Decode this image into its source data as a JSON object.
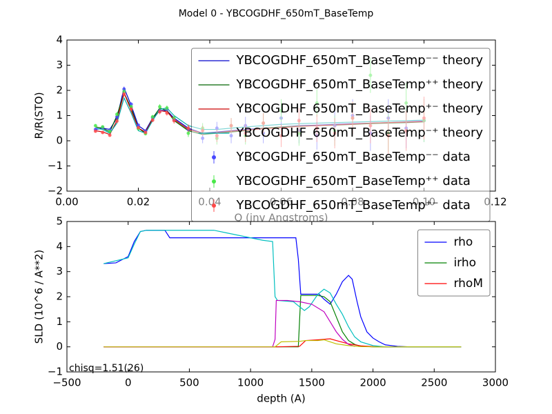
{
  "chart_data": [
    {
      "type": "line",
      "title": "Model 0 - YBCOGDHF_650mT_BaseTemp",
      "xlabel": "Q (inv Angstroms)",
      "ylabel": "R/R(STO)",
      "xlim": [
        0,
        0.12
      ],
      "ylim": [
        -2,
        4
      ],
      "xticks": [
        {
          "value": 0,
          "label": "0.00"
        },
        {
          "value": 0.02,
          "label": "0.02"
        },
        {
          "value": 0.04,
          "label": "0.04"
        },
        {
          "value": 0.06,
          "label": "0.06"
        },
        {
          "value": 0.08,
          "label": "0.08"
        },
        {
          "value": 0.1,
          "label": "0.10"
        },
        {
          "value": 0.12,
          "label": "0.12"
        }
      ],
      "yticks": [
        {
          "value": -2,
          "label": "−2"
        },
        {
          "value": -1,
          "label": "−1"
        },
        0,
        1,
        2,
        3,
        4
      ],
      "grid": false,
      "legend": "upper right",
      "x": [
        0.008,
        0.01,
        0.012,
        0.014,
        0.016,
        0.018,
        0.02,
        0.022,
        0.024,
        0.026,
        0.028,
        0.03,
        0.034,
        0.038,
        0.042,
        0.046,
        0.05,
        0.055,
        0.06,
        0.065,
        0.07,
        0.075,
        0.08,
        0.085,
        0.09,
        0.095,
        0.1
      ],
      "series": [
        {
          "name": "YBCOGDHF_650mT_BaseTemp⁻⁻ theory",
          "color": "#0000cc",
          "style": "line",
          "values": [
            0.45,
            0.5,
            0.45,
            0.9,
            2.1,
            1.4,
            0.6,
            0.4,
            0.9,
            1.2,
            1.2,
            0.9,
            0.5,
            0.3,
            0.35,
            0.4,
            0.45,
            0.5,
            0.55,
            0.6,
            0.62,
            0.65,
            0.68,
            0.7,
            0.72,
            0.75,
            0.78
          ]
        },
        {
          "name": "YBCOGDHF_650mT_BaseTemp⁺⁺ theory",
          "color": "#006400",
          "style": "line",
          "values": [
            0.55,
            0.5,
            0.35,
            1.0,
            1.9,
            1.3,
            0.5,
            0.3,
            0.9,
            1.3,
            1.2,
            0.8,
            0.4,
            0.25,
            0.3,
            0.35,
            0.4,
            0.5,
            0.55,
            0.58,
            0.6,
            0.62,
            0.65,
            0.68,
            0.7,
            0.72,
            0.75
          ]
        },
        {
          "name": "YBCOGDHF_650mT_BaseTemp⁺⁻ theory",
          "color": "#cc0000",
          "style": "line",
          "values": [
            0.4,
            0.35,
            0.25,
            0.8,
            1.9,
            1.2,
            0.5,
            0.35,
            0.85,
            1.2,
            1.15,
            0.85,
            0.45,
            0.3,
            0.32,
            0.38,
            0.42,
            0.48,
            0.52,
            0.57,
            0.6,
            0.63,
            0.66,
            0.7,
            0.72,
            0.74,
            0.76
          ]
        },
        {
          "name": "YBCOGDHF_650mT_BaseTemp⁻⁺ theory",
          "color": "#00aaaa",
          "style": "line",
          "values": [
            0.5,
            0.45,
            0.3,
            0.7,
            1.7,
            1.1,
            0.4,
            0.3,
            0.8,
            1.25,
            1.3,
            1.0,
            0.6,
            0.45,
            0.45,
            0.5,
            0.55,
            0.6,
            0.65,
            0.68,
            0.7,
            0.72,
            0.74,
            0.76,
            0.78,
            0.8,
            0.82
          ]
        },
        {
          "name": "YBCOGDHF_650mT_BaseTemp⁻⁻ data",
          "color": "#4848ff",
          "style": "errorbar",
          "values": [
            0.45,
            0.52,
            0.43,
            0.95,
            2.05,
            1.45,
            0.62,
            0.38,
            0.92,
            1.18,
            1.25,
            0.85,
            0.45,
            0.1,
            0.5,
            0.2,
            0.6,
            0.3,
            0.9,
            0.4,
            0.2,
            0.6,
            1.0,
            0.3,
            0.9,
            0.5,
            0.8
          ],
          "errors": [
            0.05,
            0.05,
            0.05,
            0.08,
            0.1,
            0.08,
            0.06,
            0.06,
            0.08,
            0.1,
            0.1,
            0.12,
            0.15,
            0.2,
            0.25,
            0.3,
            0.35,
            0.4,
            0.45,
            0.5,
            0.55,
            0.6,
            0.65,
            0.7,
            0.75,
            0.8,
            0.85
          ]
        },
        {
          "name": "YBCOGDHF_650mT_BaseTemp⁺⁺ data",
          "color": "#48e848",
          "style": "errorbar",
          "values": [
            0.6,
            0.55,
            0.38,
            1.05,
            1.95,
            1.35,
            0.48,
            0.28,
            0.95,
            1.35,
            1.3,
            0.9,
            0.3,
            0.5,
            0.1,
            0.6,
            0.2,
            0.7,
            1.2,
            0.3,
            1.5,
            0.4,
            0.9,
            2.6,
            0.3,
            1.5,
            0.8
          ],
          "errors": [
            0.05,
            0.05,
            0.05,
            0.08,
            0.1,
            0.08,
            0.06,
            0.06,
            0.08,
            0.1,
            0.1,
            0.12,
            0.15,
            0.2,
            0.25,
            0.3,
            0.35,
            0.4,
            0.45,
            0.5,
            0.55,
            0.6,
            0.65,
            0.7,
            0.75,
            0.8,
            0.85
          ]
        },
        {
          "name": "YBCOGDHF_650mT_BaseTemp⁺⁻ data",
          "color": "#ff4848",
          "style": "errorbar",
          "values": [
            0.38,
            0.33,
            0.22,
            0.78,
            1.85,
            1.25,
            0.52,
            0.33,
            0.82,
            1.15,
            1.1,
            0.8,
            0.5,
            0.4,
            0.2,
            0.6,
            0.3,
            0.7,
            0.2,
            0.8,
            0.5,
            0.3,
            0.9,
            0.6,
            0.2,
            0.4,
            0.9
          ],
          "errors": [
            0.05,
            0.05,
            0.05,
            0.08,
            0.1,
            0.08,
            0.06,
            0.06,
            0.08,
            0.1,
            0.1,
            0.12,
            0.15,
            0.2,
            0.25,
            0.3,
            0.35,
            0.4,
            0.45,
            0.5,
            0.55,
            0.6,
            0.65,
            0.7,
            0.75,
            0.8,
            0.85
          ]
        }
      ]
    },
    {
      "type": "line",
      "xlabel": "depth (A)",
      "ylabel": "SLD (10^6 / A**2)",
      "xlim": [
        -500,
        3000
      ],
      "ylim": [
        -1,
        5
      ],
      "xticks": [
        {
          "value": -500,
          "label": "−500"
        },
        0,
        500,
        1000,
        1500,
        2000,
        2500,
        3000
      ],
      "yticks": [
        {
          "value": -1,
          "label": "−1"
        },
        0,
        1,
        2,
        3,
        4,
        5
      ],
      "grid": false,
      "legend": "upper right",
      "annotation": "chisq=1.51(26)",
      "series": [
        {
          "name": "rho",
          "color": "#0000ff",
          "x": [
            -200,
            -100,
            0,
            50,
            100,
            150,
            300,
            340,
            400,
            1000,
            1370,
            1390,
            1410,
            1500,
            1560,
            1600,
            1650,
            1700,
            1750,
            1800,
            1830,
            1870,
            1900,
            1950,
            2000,
            2050,
            2100,
            2200,
            2300,
            2720
          ],
          "values": [
            3.32,
            3.35,
            3.6,
            4.2,
            4.6,
            4.65,
            4.65,
            4.35,
            4.35,
            4.35,
            4.35,
            3.5,
            2.1,
            2.1,
            2.1,
            1.9,
            1.7,
            2.1,
            2.6,
            2.85,
            2.7,
            1.8,
            1.2,
            0.6,
            0.35,
            0.2,
            0.08,
            0.02,
            0,
            0
          ]
        },
        {
          "name": "irho",
          "color": "#008000",
          "x": [
            -200,
            1390,
            1410,
            1550,
            1600,
            1650,
            1700,
            1750,
            1800,
            1850,
            1900,
            2000,
            2720
          ],
          "values": [
            0,
            0,
            2.05,
            2.05,
            2.0,
            1.8,
            1.2,
            0.6,
            0.25,
            0.1,
            0.02,
            0,
            0
          ]
        },
        {
          "name": "rhoM",
          "color": "#ff0000",
          "x": [
            -200,
            1200,
            1400,
            1450,
            1550,
            1600,
            1650,
            1700,
            1800,
            1900,
            2000,
            2100,
            2720
          ],
          "values": [
            0,
            0,
            0.02,
            0.25,
            0.28,
            0.3,
            0.32,
            0.25,
            0.12,
            0.04,
            0.01,
            0,
            0
          ]
        },
        {
          "color": "#00bfbf",
          "x": [
            -200,
            0,
            50,
            100,
            150,
            700,
            800,
            900,
            1000,
            1100,
            1180,
            1200,
            1220,
            1350,
            1400,
            1440,
            1480,
            1550,
            1600,
            1650,
            1700,
            1750,
            1800,
            1850,
            1900,
            2000,
            2100,
            2720
          ],
          "values": [
            3.32,
            3.55,
            4.1,
            4.6,
            4.65,
            4.65,
            4.55,
            4.45,
            4.35,
            4.25,
            4.2,
            2.0,
            1.85,
            1.8,
            1.6,
            1.45,
            1.6,
            2.1,
            2.3,
            2.15,
            1.7,
            1.3,
            0.8,
            0.4,
            0.2,
            0.05,
            0,
            0
          ]
        },
        {
          "color": "#bf00bf",
          "x": [
            -200,
            1180,
            1200,
            1210,
            1300,
            1400,
            1500,
            1600,
            1650,
            1700,
            1750,
            1800,
            1850
          ],
          "values": [
            0,
            0,
            0.3,
            1.85,
            1.85,
            1.8,
            1.7,
            1.4,
            1.0,
            0.6,
            0.3,
            0.1,
            0.02
          ]
        },
        {
          "color": "#bfbf00",
          "x": [
            -200,
            1200,
            1250,
            1400,
            1450,
            1550,
            1600,
            1650,
            1700,
            1800,
            1900,
            2000,
            2720
          ],
          "values": [
            0,
            0,
            0.2,
            0.22,
            0.25,
            0.25,
            0.28,
            0.2,
            0.12,
            0.05,
            0.01,
            0,
            0
          ]
        }
      ]
    }
  ]
}
